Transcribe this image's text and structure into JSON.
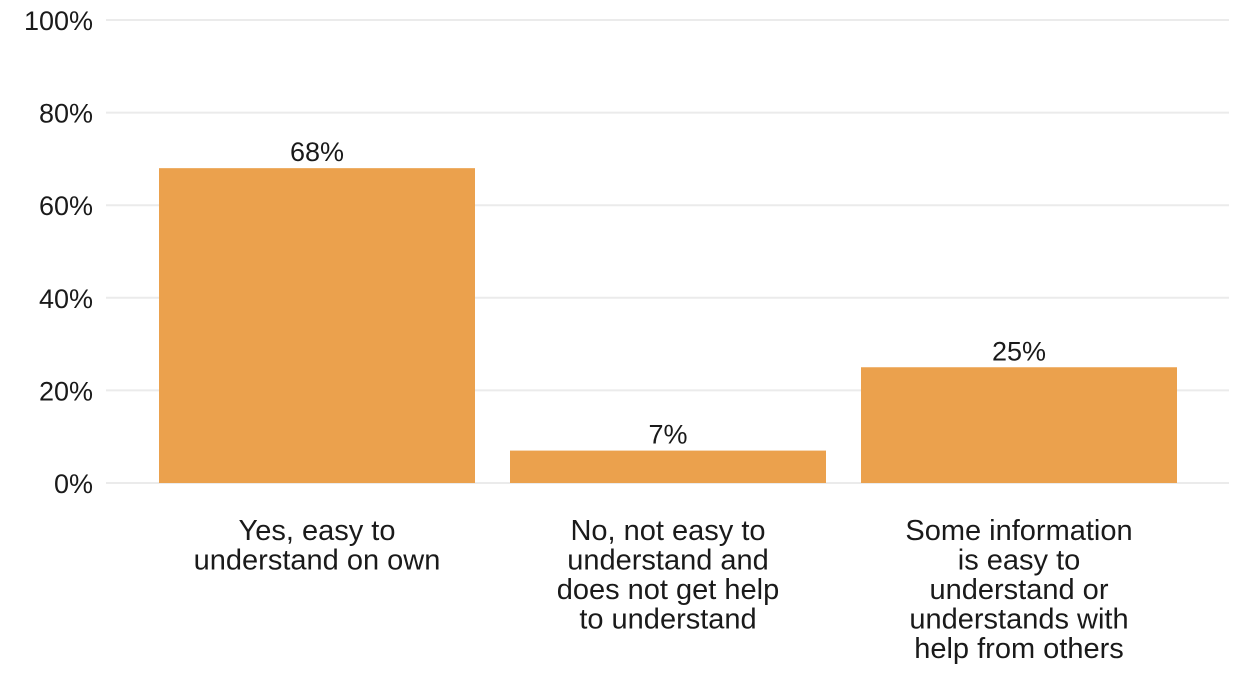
{
  "chart_data": {
    "type": "bar",
    "categories": [
      [
        "Yes, easy to",
        "understand on own"
      ],
      [
        "No, not easy to",
        "understand and",
        "does not get help",
        "to understand"
      ],
      [
        "Some information",
        "is easy to",
        "understand or",
        "understands with",
        "help from others"
      ]
    ],
    "values": [
      68,
      7,
      25
    ],
    "data_labels": [
      "68%",
      "7%",
      "25%"
    ],
    "title": "",
    "xlabel": "",
    "ylabel": "",
    "ylim": [
      0,
      100
    ],
    "y_ticks": [
      {
        "value": 0,
        "label": "0%"
      },
      {
        "value": 20,
        "label": "20%"
      },
      {
        "value": 40,
        "label": "40%"
      },
      {
        "value": 60,
        "label": "60%"
      },
      {
        "value": 80,
        "label": "80%"
      },
      {
        "value": 100,
        "label": "100%"
      }
    ],
    "grid": true,
    "legend": "none",
    "bar_color": "#eba14d",
    "grid_color": "#ebebeb",
    "text_color": "#1a1a1a"
  }
}
